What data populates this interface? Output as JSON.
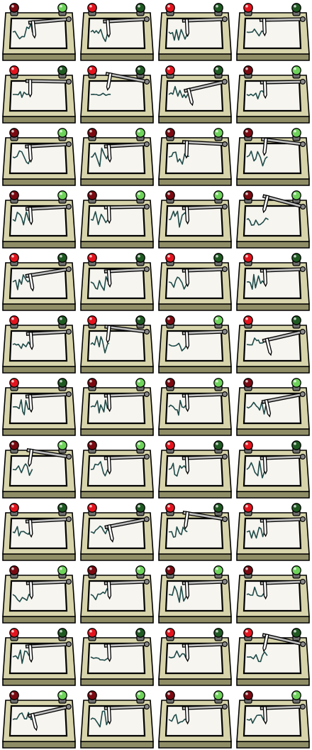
{
  "sheet": {
    "columns": 4,
    "rows": 12,
    "palette": {
      "base_dark": "#8f8d66",
      "base_light": "#d7d4ab",
      "paper": "#f6f5f0",
      "trace": "#1f4a48",
      "arm": "#bdbdbd",
      "arm_shade": "#8a8a8a",
      "outline": "#000000",
      "red_on": "#e2141e",
      "red_off": "#7a0a12",
      "green_on": "#6ed35a",
      "green_off": "#1f5a22"
    },
    "frames": [
      {
        "red": "off",
        "green": "on",
        "arm": 0.55,
        "swing": -6,
        "amp": 0.85,
        "seed": 1
      },
      {
        "red": "on",
        "green": "off",
        "arm": 0.4,
        "swing": -4,
        "amp": 0.95,
        "seed": 2
      },
      {
        "red": "on",
        "green": "off",
        "arm": 0.45,
        "swing": -3,
        "amp": 0.9,
        "seed": 3
      },
      {
        "red": "on",
        "green": "off",
        "arm": 0.42,
        "swing": -2,
        "amp": 0.45,
        "seed": 4
      },
      {
        "red": "on",
        "green": "off",
        "arm": 0.42,
        "swing": 0,
        "amp": 0.3,
        "seed": 5
      },
      {
        "red": "on",
        "green": "off",
        "arm": 0.48,
        "swing": 10,
        "amp": 0.15,
        "seed": 6
      },
      {
        "red": "on",
        "green": "off",
        "arm": 0.5,
        "swing": -14,
        "amp": 0.95,
        "seed": 7
      },
      {
        "red": "off",
        "green": "on",
        "arm": 0.45,
        "swing": -2,
        "amp": 0.6,
        "seed": 8
      },
      {
        "red": "off",
        "green": "on",
        "arm": 0.4,
        "swing": -4,
        "amp": 0.85,
        "seed": 9
      },
      {
        "red": "off",
        "green": "on",
        "arm": 0.45,
        "swing": -4,
        "amp": 0.95,
        "seed": 10
      },
      {
        "red": "off",
        "green": "on",
        "arm": 0.45,
        "swing": 2,
        "amp": 0.8,
        "seed": 11
      },
      {
        "red": "off",
        "green": "on",
        "arm": 0.48,
        "swing": 6,
        "amp": 0.9,
        "seed": 12
      },
      {
        "red": "off",
        "green": "on",
        "arm": 0.42,
        "swing": -4,
        "amp": 0.95,
        "seed": 13
      },
      {
        "red": "off",
        "green": "on",
        "arm": 0.45,
        "swing": -2,
        "amp": 0.9,
        "seed": 14
      },
      {
        "red": "off",
        "green": "on",
        "arm": 0.45,
        "swing": -3,
        "amp": 0.85,
        "seed": 15
      },
      {
        "red": "off",
        "green": "on",
        "arm": 0.5,
        "swing": 14,
        "amp": 0.85,
        "seed": 16
      },
      {
        "red": "on",
        "green": "off",
        "arm": 0.4,
        "swing": -10,
        "amp": 0.95,
        "seed": 17
      },
      {
        "red": "on",
        "green": "off",
        "arm": 0.45,
        "swing": -4,
        "amp": 0.9,
        "seed": 18
      },
      {
        "red": "on",
        "green": "off",
        "arm": 0.45,
        "swing": -3,
        "amp": 0.9,
        "seed": 19
      },
      {
        "red": "on",
        "green": "off",
        "arm": 0.45,
        "swing": -3,
        "amp": 0.8,
        "seed": 20
      },
      {
        "red": "on",
        "green": "off",
        "arm": 0.45,
        "swing": -4,
        "amp": 0.6,
        "seed": 21
      },
      {
        "red": "on",
        "green": "off",
        "arm": 0.45,
        "swing": 6,
        "amp": 0.85,
        "seed": 22
      },
      {
        "red": "off",
        "green": "on",
        "arm": 0.45,
        "swing": -3,
        "amp": 0.95,
        "seed": 23
      },
      {
        "red": "on",
        "green": "off",
        "arm": 0.52,
        "swing": -14,
        "amp": 0.75,
        "seed": 24
      },
      {
        "red": "on",
        "green": "off",
        "arm": 0.42,
        "swing": -4,
        "amp": 0.8,
        "seed": 25
      },
      {
        "red": "off",
        "green": "on",
        "arm": 0.45,
        "swing": -3,
        "amp": 0.85,
        "seed": 26
      },
      {
        "red": "off",
        "green": "on",
        "arm": 0.45,
        "swing": -3,
        "amp": 0.9,
        "seed": 27
      },
      {
        "red": "off",
        "green": "on",
        "arm": 0.5,
        "swing": -12,
        "amp": 0.75,
        "seed": 28
      },
      {
        "red": "off",
        "green": "on",
        "arm": 0.45,
        "swing": 8,
        "amp": 0.75,
        "seed": 29
      },
      {
        "red": "off",
        "green": "on",
        "arm": 0.45,
        "swing": -3,
        "amp": 0.9,
        "seed": 30
      },
      {
        "red": "on",
        "green": "off",
        "arm": 0.45,
        "swing": -3,
        "amp": 0.9,
        "seed": 31
      },
      {
        "red": "on",
        "green": "off",
        "arm": 0.45,
        "swing": -3,
        "amp": 0.85,
        "seed": 32
      },
      {
        "red": "on",
        "green": "off",
        "arm": 0.42,
        "swing": -4,
        "amp": 0.6,
        "seed": 33
      },
      {
        "red": "on",
        "green": "off",
        "arm": 0.45,
        "swing": -12,
        "amp": 0.65,
        "seed": 34
      },
      {
        "red": "on",
        "green": "off",
        "arm": 0.45,
        "swing": 8,
        "amp": 0.6,
        "seed": 35
      },
      {
        "red": "on",
        "green": "off",
        "arm": 0.45,
        "swing": -3,
        "amp": 0.8,
        "seed": 36
      },
      {
        "red": "off",
        "green": "on",
        "arm": 0.45,
        "swing": -3,
        "amp": 0.8,
        "seed": 37
      },
      {
        "red": "off",
        "green": "on",
        "arm": 0.45,
        "swing": -3,
        "amp": 0.95,
        "seed": 38
      },
      {
        "red": "off",
        "green": "on",
        "arm": 0.45,
        "swing": -3,
        "amp": 0.85,
        "seed": 39
      },
      {
        "red": "off",
        "green": "on",
        "arm": 0.45,
        "swing": -3,
        "amp": 0.9,
        "seed": 40
      },
      {
        "red": "on",
        "green": "off",
        "arm": 0.42,
        "swing": -4,
        "amp": 0.8,
        "seed": 41
      },
      {
        "red": "on",
        "green": "off",
        "arm": 0.45,
        "swing": -3,
        "amp": 0.7,
        "seed": 42
      },
      {
        "red": "on",
        "green": "off",
        "arm": 0.45,
        "swing": -3,
        "amp": 0.8,
        "seed": 43
      },
      {
        "red": "on",
        "green": "off",
        "arm": 0.5,
        "swing": 12,
        "amp": 0.6,
        "seed": 44
      },
      {
        "red": "off",
        "green": "on",
        "arm": 0.5,
        "swing": -14,
        "amp": 0.85,
        "seed": 45
      },
      {
        "red": "off",
        "green": "on",
        "arm": 0.45,
        "swing": -3,
        "amp": 0.9,
        "seed": 46
      },
      {
        "red": "off",
        "green": "on",
        "arm": 0.45,
        "swing": -3,
        "amp": 0.95,
        "seed": 47
      },
      {
        "red": "off",
        "green": "on",
        "arm": 0.45,
        "swing": -3,
        "amp": 0.7,
        "seed": 48
      }
    ]
  }
}
